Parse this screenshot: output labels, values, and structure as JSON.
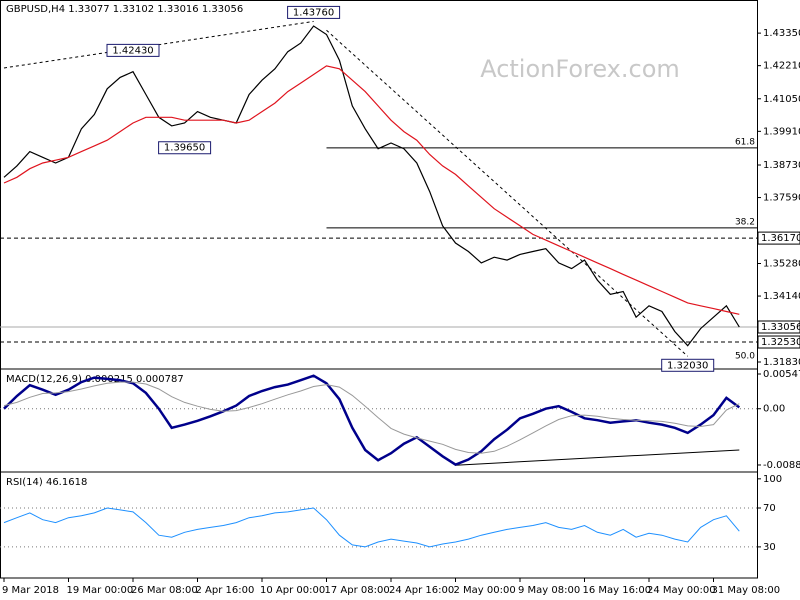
{
  "chart_data": [
    {
      "type": "line",
      "title": "GBPUSD,H4  1.33077 1.33102 1.33016 1.33056",
      "watermark": "ActionForex.com",
      "ylim": [
        1.3162,
        1.4451
      ],
      "yticks": [
        {
          "value": 1.4335,
          "label": "1.43350"
        },
        {
          "value": 1.4221,
          "label": "1.42210"
        },
        {
          "value": 1.4105,
          "label": "1.41050"
        },
        {
          "value": 1.3991,
          "label": "1.39910"
        },
        {
          "value": 1.3873,
          "label": "1.38730"
        },
        {
          "value": 1.3759,
          "label": "1.37590"
        },
        {
          "value": 1.3528,
          "label": "1.35280"
        },
        {
          "value": 1.3414,
          "label": "1.34140"
        },
        {
          "value": 1.3183,
          "label": "1.31830"
        }
      ],
      "series": [
        {
          "color": "#000000",
          "values": [
            1.383,
            1.387,
            1.392,
            1.39,
            1.388,
            1.39,
            1.4,
            1.405,
            1.414,
            1.418,
            1.42,
            1.412,
            1.404,
            1.401,
            1.402,
            1.406,
            1.404,
            1.403,
            1.402,
            1.412,
            1.417,
            1.421,
            1.427,
            1.43,
            1.436,
            1.433,
            1.424,
            1.408,
            1.4,
            1.393,
            1.395,
            1.393,
            1.388,
            1.378,
            1.366,
            1.36,
            1.357,
            1.353,
            1.355,
            1.354,
            1.356,
            1.357,
            1.358,
            1.353,
            1.351,
            1.354,
            1.347,
            1.342,
            1.343,
            1.334,
            1.338,
            1.336,
            1.329,
            1.324,
            1.33,
            1.334,
            1.338,
            1.33056
          ]
        },
        {
          "color": "#e0141e",
          "values": [
            1.381,
            1.383,
            1.386,
            1.388,
            1.389,
            1.39,
            1.392,
            1.394,
            1.396,
            1.399,
            1.402,
            1.404,
            1.404,
            1.404,
            1.403,
            1.403,
            1.403,
            1.403,
            1.402,
            1.403,
            1.406,
            1.409,
            1.413,
            1.416,
            1.419,
            1.422,
            1.421,
            1.417,
            1.413,
            1.408,
            1.403,
            1.399,
            1.396,
            1.391,
            1.387,
            1.384,
            1.38,
            1.376,
            1.372,
            1.369,
            1.366,
            1.363,
            1.361,
            1.359,
            1.357,
            1.355,
            1.353,
            1.351,
            1.349,
            1.347,
            1.345,
            1.343,
            1.341,
            1.339,
            1.338,
            1.337,
            1.336,
            1.335
          ]
        }
      ],
      "levels": [
        {
          "value": 1.3617,
          "label": "1.36170",
          "style": "dashed"
        },
        {
          "value": 1.3253,
          "label": "1.32530",
          "style": "dashed"
        },
        {
          "value": 1.33056,
          "label": "1.33056",
          "style": "current"
        }
      ],
      "fib": [
        {
          "value": 1.3933,
          "label": "61.8",
          "line": true
        },
        {
          "value": 1.3653,
          "label": "38.2",
          "line": true
        },
        {
          "value": 1.3183,
          "label": "50.0",
          "line": false
        }
      ],
      "callouts": [
        {
          "label": "1.43760",
          "value": 1.4376,
          "index": 24,
          "kind": "high"
        },
        {
          "label": "1.42430",
          "value": 1.4243,
          "index": 10,
          "kind": "high"
        },
        {
          "label": "1.39650",
          "value": 1.3965,
          "index": 14,
          "kind": "low"
        },
        {
          "label": "1.32030",
          "value": 1.3203,
          "index": 53,
          "kind": "low"
        }
      ],
      "trendlines": [
        {
          "from": [
            0,
            1.4213
          ],
          "to": [
            24,
            1.4376
          ]
        },
        {
          "from": [
            25,
            1.4345
          ],
          "to": [
            53,
            1.3203
          ]
        }
      ]
    },
    {
      "type": "line",
      "title": "MACD(12,26,9) 0.000215 0.000787",
      "ylim": [
        -0.00965,
        0.0061
      ],
      "yticks": [
        {
          "value": 0.00547,
          "label": "0.00547"
        },
        {
          "value": 0,
          "label": "0.00"
        },
        {
          "value": -0.00886,
          "label": "-0.00886"
        }
      ],
      "series": [
        {
          "color": "#00008b",
          "width": 2.5,
          "values": [
            0.0,
            0.002,
            0.0037,
            0.003,
            0.0022,
            0.003,
            0.0042,
            0.0049,
            0.0047,
            0.0045,
            0.004,
            0.0025,
            0.0,
            -0.003,
            -0.0025,
            -0.0019,
            -0.0012,
            -0.0004,
            0.0005,
            0.002,
            0.0028,
            0.0034,
            0.0038,
            0.0045,
            0.0052,
            0.004,
            0.0015,
            -0.003,
            -0.0065,
            -0.0081,
            -0.007,
            -0.0055,
            -0.0045,
            -0.006,
            -0.0075,
            -0.0088,
            -0.008,
            -0.0067,
            -0.0048,
            -0.0033,
            -0.0015,
            -0.0008,
            0.0,
            0.0004,
            -0.0005,
            -0.0015,
            -0.0018,
            -0.0022,
            -0.002,
            -0.0018,
            -0.0022,
            -0.0025,
            -0.003,
            -0.0038,
            -0.0025,
            -0.001,
            0.0017,
            0.000215
          ]
        },
        {
          "color": "#999999",
          "width": 1,
          "values": [
            0.0005,
            0.001,
            0.0018,
            0.0024,
            0.0025,
            0.0027,
            0.0031,
            0.0036,
            0.004,
            0.0042,
            0.0042,
            0.0039,
            0.0031,
            0.0019,
            0.001,
            0.0004,
            -0.0001,
            -0.0004,
            -0.0003,
            0.0002,
            0.0008,
            0.0015,
            0.0022,
            0.0028,
            0.0035,
            0.0038,
            0.0034,
            0.0021,
            0.0004,
            -0.0014,
            -0.0031,
            -0.004,
            -0.0046,
            -0.0051,
            -0.0056,
            -0.0064,
            -0.0069,
            -0.007,
            -0.0067,
            -0.0059,
            -0.0049,
            -0.0038,
            -0.0027,
            -0.0017,
            -0.0011,
            -0.001,
            -0.0012,
            -0.0015,
            -0.0017,
            -0.0018,
            -0.0019,
            -0.002,
            -0.0023,
            -0.0027,
            -0.0028,
            -0.0025,
            -0.0002,
            0.000787
          ]
        }
      ],
      "levels": [
        {
          "value": 0,
          "style": "dotted"
        }
      ],
      "trendlines": [
        {
          "from": [
            35,
            -0.0089
          ],
          "to": [
            57,
            -0.0065
          ]
        }
      ]
    },
    {
      "type": "line",
      "title": "RSI(14) 46.1618",
      "ylim": [
        -2,
        106
      ],
      "yticks": [
        100,
        70,
        30
      ],
      "series": [
        {
          "color": "#1e90ff",
          "width": 1,
          "values": [
            55,
            60,
            65,
            58,
            55,
            60,
            62,
            65,
            70,
            68,
            66,
            55,
            42,
            40,
            45,
            48,
            50,
            52,
            55,
            60,
            62,
            65,
            66,
            68,
            70,
            58,
            42,
            32,
            30,
            35,
            38,
            36,
            34,
            30,
            33,
            35,
            38,
            42,
            45,
            48,
            50,
            52,
            55,
            50,
            48,
            52,
            45,
            42,
            48,
            40,
            44,
            42,
            38,
            35,
            50,
            58,
            62,
            46.1618
          ]
        }
      ],
      "levels": [
        {
          "value": 70,
          "style": "dotted"
        },
        {
          "value": 30,
          "style": "dotted"
        }
      ],
      "categories": [
        "9 Mar 2018",
        null,
        null,
        null,
        null,
        "19 Mar 00:00",
        null,
        null,
        null,
        null,
        "26 Mar 08:00",
        null,
        null,
        null,
        null,
        "2 Apr 16:00",
        null,
        null,
        null,
        null,
        "10 Apr 00:00",
        null,
        null,
        null,
        null,
        "17 Apr 08:00",
        null,
        null,
        null,
        null,
        "24 Apr 16:00",
        null,
        null,
        null,
        null,
        "2 May 00:00",
        null,
        null,
        null,
        null,
        "9 May 08:00",
        null,
        null,
        null,
        null,
        "16 May 16:00",
        null,
        null,
        null,
        null,
        "24 May 00:00",
        null,
        null,
        null,
        null,
        "31 May 08:00",
        null,
        null
      ]
    }
  ]
}
